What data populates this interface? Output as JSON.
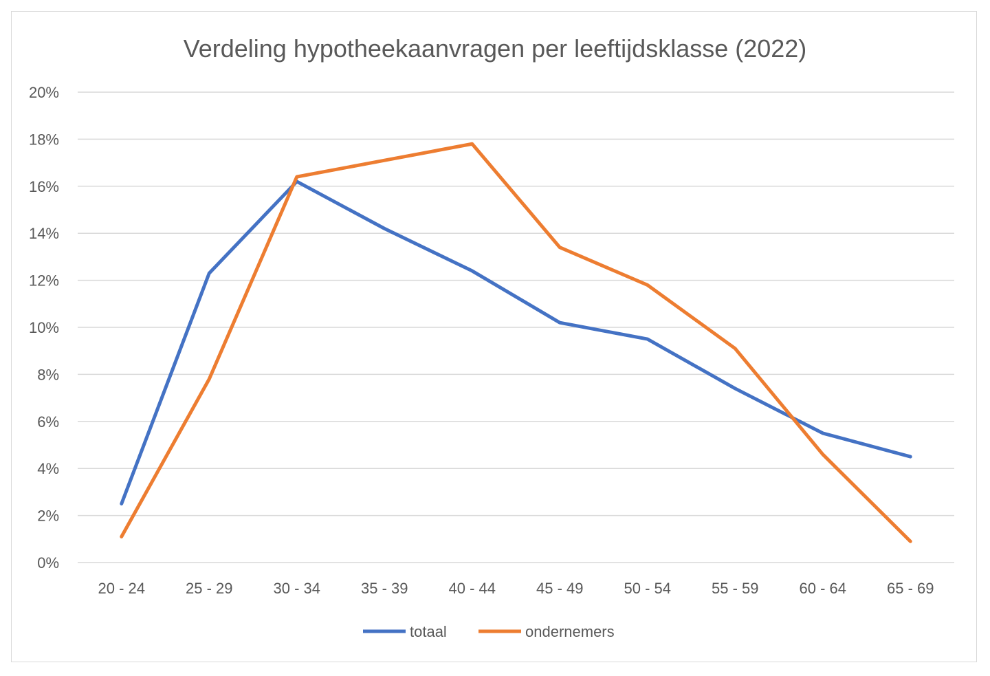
{
  "chart_data": {
    "type": "line",
    "title": "Verdeling hypotheekaanvragen per leeftijdsklasse (2022)",
    "xlabel": "",
    "ylabel": "",
    "categories": [
      "20 - 24",
      "25 - 29",
      "30 - 34",
      "35 - 39",
      "40 - 44",
      "45 - 49",
      "50 - 54",
      "55 - 59",
      "60 - 64",
      "65 - 69"
    ],
    "ylim": [
      0,
      20
    ],
    "y_ticks": [
      "0%",
      "2%",
      "4%",
      "6%",
      "8%",
      "10%",
      "12%",
      "14%",
      "16%",
      "18%",
      "20%"
    ],
    "grid": true,
    "legend_position": "bottom",
    "series": [
      {
        "name": "totaal",
        "color": "#4472C4",
        "values": [
          2.5,
          12.3,
          16.2,
          14.2,
          12.4,
          10.2,
          9.5,
          7.4,
          5.5,
          4.5
        ]
      },
      {
        "name": "ondernemers",
        "color": "#ED7D31",
        "values": [
          1.1,
          7.8,
          16.4,
          17.1,
          17.8,
          13.4,
          11.8,
          9.1,
          4.6,
          0.9
        ]
      }
    ]
  }
}
